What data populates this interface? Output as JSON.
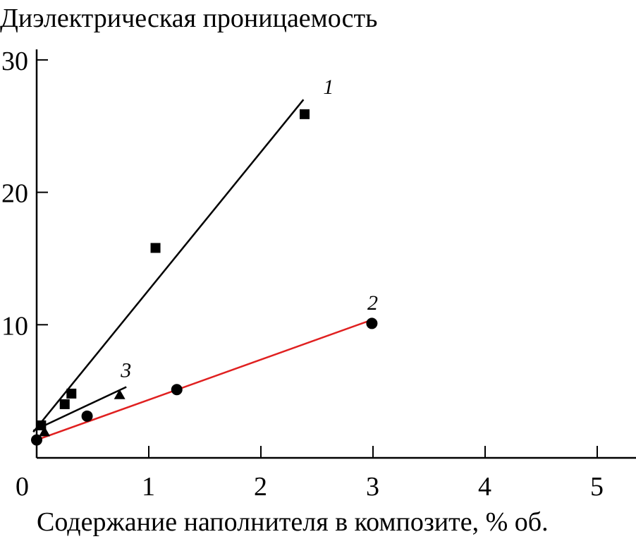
{
  "chart_data": {
    "type": "scatter",
    "title": "Диэлектрическая проницаемость",
    "xlabel": "Содержание наполнителя в композите, % об.",
    "ylabel": "Диэлектрическая проницаемость",
    "xlim": [
      0,
      5.3
    ],
    "ylim": [
      0,
      31
    ],
    "xticks": [
      "0",
      "1",
      "2",
      "3",
      "4",
      "5"
    ],
    "yticks": [
      "10",
      "20",
      "30"
    ],
    "grid": false,
    "series": [
      {
        "name": "1",
        "marker": "square",
        "color": "#000000",
        "points": [
          [
            0.04,
            2.4
          ],
          [
            0.25,
            4.0
          ],
          [
            0.31,
            4.8
          ],
          [
            1.06,
            15.8
          ],
          [
            2.39,
            25.9
          ]
        ],
        "fit": [
          [
            -0.03,
            1.9
          ],
          [
            2.38,
            27.0
          ]
        ]
      },
      {
        "name": "2",
        "marker": "circle",
        "color": "#000000",
        "line_color": "#e02020",
        "points": [
          [
            0.0,
            1.3
          ],
          [
            0.45,
            3.1
          ],
          [
            1.25,
            5.1
          ],
          [
            2.99,
            10.1
          ]
        ],
        "fit": [
          [
            0.0,
            1.3
          ],
          [
            3.0,
            10.4
          ]
        ]
      },
      {
        "name": "3",
        "marker": "triangle",
        "color": "#000000",
        "points": [
          [
            0.07,
            1.9
          ],
          [
            0.74,
            4.7
          ]
        ],
        "fit": [
          [
            -0.03,
            2.0
          ],
          [
            0.8,
            5.3
          ]
        ]
      }
    ]
  }
}
